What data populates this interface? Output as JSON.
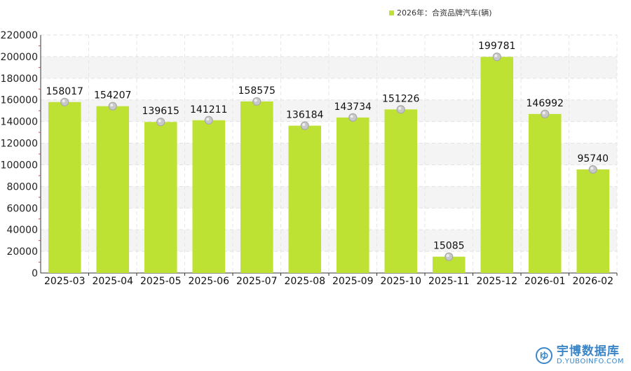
{
  "chart_data": {
    "type": "bar",
    "categories": [
      "2025-03",
      "2025-04",
      "2025-05",
      "2025-06",
      "2025-07",
      "2025-08",
      "2025-09",
      "2025-10",
      "2025-11",
      "2025-12",
      "2026-01",
      "2026-02"
    ],
    "series": [
      {
        "name": "2026年：合资品牌汽车(辆)",
        "values": [
          158017,
          154207,
          139615,
          141211,
          158575,
          136184,
          143734,
          151226,
          15085,
          199781,
          146992,
          95740
        ]
      }
    ],
    "ylim": [
      0,
      220000
    ],
    "yticks": [
      0,
      20000,
      40000,
      60000,
      80000,
      100000,
      120000,
      140000,
      160000,
      180000,
      200000,
      220000
    ],
    "legend_position": "top-right",
    "grid": true,
    "bar_color": "#bde234"
  },
  "legend": {
    "label": "2026年：合资品牌汽车(辆)",
    "color": "#bde234"
  },
  "watermark": {
    "name": "宇博数据库",
    "url": "D.YUBOINFO.COM",
    "logo_text": "ゆ"
  }
}
